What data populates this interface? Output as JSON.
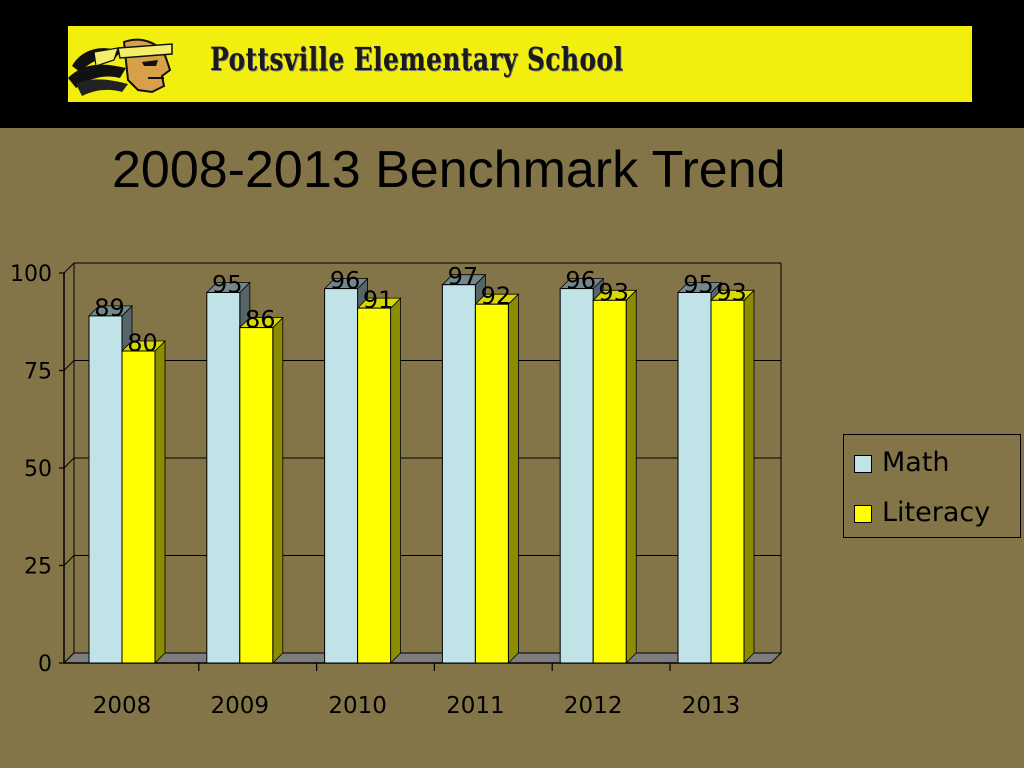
{
  "header": {
    "school_name": "Pottsville Elementary School",
    "banner_color": "#f2ee0e",
    "band_color": "#000000",
    "logo_icon": "mascot-head-icon"
  },
  "slide": {
    "title": "2008-2013 Benchmark Trend",
    "background": "#847548"
  },
  "chart_data": {
    "type": "bar",
    "categories": [
      "2008",
      "2009",
      "2010",
      "2011",
      "2012",
      "2013"
    ],
    "series": [
      {
        "name": "Math",
        "values": [
          89,
          95,
          96,
          97,
          96,
          95
        ],
        "color": "#bfe3e6"
      },
      {
        "name": "Literacy",
        "values": [
          80,
          86,
          91,
          92,
          93,
          93
        ],
        "color": "#ffff00"
      }
    ],
    "ylim": [
      0,
      100
    ],
    "yticks": [
      0,
      25,
      50,
      75,
      100
    ],
    "grid": true,
    "legend_position": "right",
    "style": "3d-clustered-column"
  }
}
